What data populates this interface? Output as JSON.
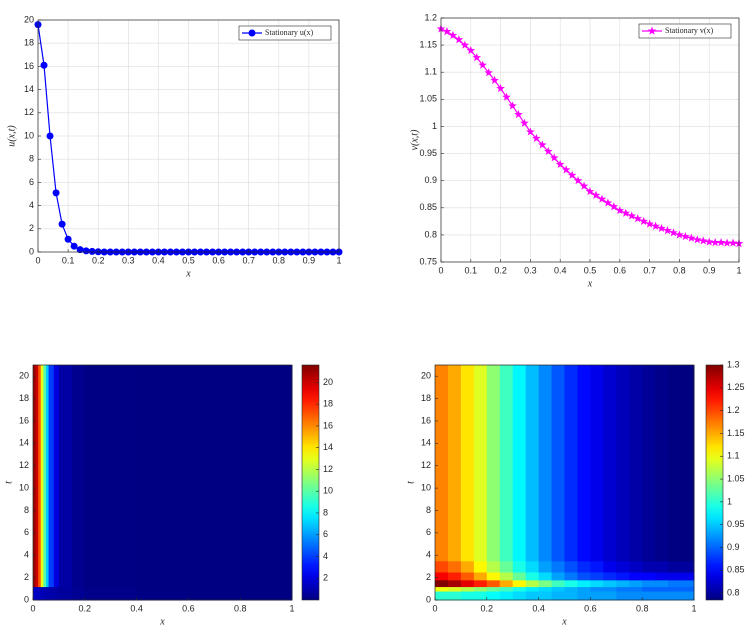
{
  "chart_data": [
    {
      "type": "line",
      "xlabel": "x",
      "ylabel": "u(x,t)",
      "x": [
        0,
        0.02,
        0.04,
        0.06,
        0.08,
        0.1,
        0.12,
        0.14,
        0.16,
        0.18,
        0.2,
        0.22,
        0.24,
        0.26,
        0.28,
        0.3,
        0.32,
        0.34,
        0.36,
        0.38,
        0.4,
        0.42,
        0.44,
        0.46,
        0.48,
        0.5,
        0.52,
        0.54,
        0.56,
        0.58,
        0.6,
        0.62,
        0.64,
        0.66,
        0.68,
        0.7,
        0.72,
        0.74,
        0.76,
        0.78,
        0.8,
        0.82,
        0.84,
        0.86,
        0.88,
        0.9,
        0.92,
        0.94,
        0.96,
        0.98,
        1
      ],
      "series": [
        {
          "name": "Stationary u(x)",
          "color": "#0000ff",
          "marker": "o",
          "values": [
            19.6,
            16.1,
            10,
            5.1,
            2.4,
            1.1,
            0.5,
            0.2,
            0.1,
            0.05,
            0.02,
            0,
            0,
            0,
            0,
            0,
            0,
            0,
            0,
            0,
            0,
            0,
            0,
            0,
            0,
            0,
            0,
            0,
            0,
            0,
            0,
            0,
            0,
            0,
            0,
            0,
            0,
            0,
            0,
            0,
            0,
            0,
            0,
            0,
            0,
            0,
            0,
            0,
            0,
            0,
            0
          ]
        }
      ],
      "xlim": [
        0,
        1
      ],
      "xticks": [
        0,
        0.1,
        0.2,
        0.3,
        0.4,
        0.5,
        0.6,
        0.7,
        0.8,
        0.9,
        1
      ],
      "ylim": [
        0,
        20
      ],
      "yticks": [
        0,
        2,
        4,
        6,
        8,
        10,
        12,
        14,
        16,
        18,
        20
      ],
      "grid": true,
      "legend": "northeast"
    },
    {
      "type": "line",
      "xlabel": "x",
      "ylabel": "v(x,t)",
      "x": [
        0,
        0.02,
        0.04,
        0.06,
        0.08,
        0.1,
        0.12,
        0.14,
        0.16,
        0.18,
        0.2,
        0.22,
        0.24,
        0.26,
        0.28,
        0.3,
        0.32,
        0.34,
        0.36,
        0.38,
        0.4,
        0.42,
        0.44,
        0.46,
        0.48,
        0.5,
        0.52,
        0.54,
        0.56,
        0.58,
        0.6,
        0.62,
        0.64,
        0.66,
        0.68,
        0.7,
        0.72,
        0.74,
        0.76,
        0.78,
        0.8,
        0.82,
        0.84,
        0.86,
        0.88,
        0.9,
        0.92,
        0.94,
        0.96,
        0.98,
        1
      ],
      "series": [
        {
          "name": "Stationary v(x)",
          "color": "#ff00ff",
          "marker": "*",
          "values": [
            1.18,
            1.175,
            1.168,
            1.16,
            1.15,
            1.14,
            1.127,
            1.113,
            1.099,
            1.085,
            1.07,
            1.054,
            1.038,
            1.022,
            1.006,
            0.99,
            0.978,
            0.966,
            0.954,
            0.942,
            0.93,
            0.92,
            0.91,
            0.9,
            0.89,
            0.88,
            0.873,
            0.866,
            0.859,
            0.852,
            0.845,
            0.84,
            0.835,
            0.83,
            0.825,
            0.82,
            0.816,
            0.812,
            0.808,
            0.804,
            0.8,
            0.797,
            0.794,
            0.791,
            0.789,
            0.787,
            0.786,
            0.786,
            0.785,
            0.785,
            0.784
          ]
        }
      ],
      "xlim": [
        0,
        1
      ],
      "xticks": [
        0,
        0.1,
        0.2,
        0.3,
        0.4,
        0.5,
        0.6,
        0.7,
        0.8,
        0.9,
        1
      ],
      "ylim": [
        0.75,
        1.2
      ],
      "yticks": [
        0.75,
        0.8,
        0.85,
        0.9,
        0.95,
        1,
        1.05,
        1.1,
        1.15,
        1.2
      ],
      "grid": true,
      "legend": "northeast"
    },
    {
      "type": "heatmap",
      "xlabel": "x",
      "ylabel": "t",
      "colormap": "jet",
      "x": [
        0,
        0.01,
        0.02,
        0.03,
        0.04,
        0.05,
        0.06,
        0.08,
        0.1,
        0.15,
        0.2,
        0.4,
        0.6,
        0.8,
        1
      ],
      "y": [
        0,
        1.2,
        21
      ],
      "z": [
        [
          1.5,
          1.4,
          1.3,
          1.2,
          1.1,
          1.0,
          0.9,
          0.8,
          0.6,
          0.4,
          0.2,
          0.1,
          0.05,
          0.05
        ],
        [
          21,
          20,
          17,
          13,
          10,
          7,
          4,
          2,
          0.8,
          0.3,
          0.1,
          0.05,
          0.05,
          0.05
        ]
      ],
      "xlim": [
        0,
        1
      ],
      "xticks": [
        0,
        0.2,
        0.4,
        0.6,
        0.8,
        1
      ],
      "ylim": [
        0,
        21
      ],
      "yticks": [
        0,
        2,
        4,
        6,
        8,
        10,
        12,
        14,
        16,
        18,
        20
      ],
      "clim": [
        0,
        21.6
      ],
      "cticks": [
        2,
        4,
        6,
        8,
        10,
        12,
        14,
        16,
        18,
        20
      ],
      "grid": false
    },
    {
      "type": "heatmap",
      "xlabel": "x",
      "ylabel": "t",
      "colormap": "jet",
      "x": [
        0,
        0.05,
        0.1,
        0.15,
        0.2,
        0.25,
        0.3,
        0.35,
        0.4,
        0.45,
        0.5,
        0.55,
        0.6,
        0.65,
        0.7,
        0.75,
        0.8,
        0.85,
        0.9,
        0.95,
        1
      ],
      "y": [
        0,
        0.8,
        1.2,
        1.8,
        2.5,
        3.5,
        21
      ],
      "z": [
        [
          1.0,
          1.0,
          0.99,
          0.99,
          0.98,
          0.97,
          0.96,
          0.95,
          0.95,
          0.94,
          0.94,
          0.93,
          0.93,
          0.93,
          0.92,
          0.92,
          0.92,
          0.92,
          0.92,
          0.92
        ],
        [
          1.1,
          1.09,
          1.07,
          1.05,
          1.03,
          1.01,
          0.99,
          0.97,
          0.96,
          0.95,
          0.94,
          0.93,
          0.92,
          0.92,
          0.91,
          0.91,
          0.9,
          0.9,
          0.9,
          0.9
        ],
        [
          1.3,
          1.28,
          1.25,
          1.22,
          1.19,
          1.15,
          1.11,
          1.07,
          1.04,
          1.01,
          0.99,
          0.97,
          0.96,
          0.95,
          0.94,
          0.93,
          0.92,
          0.92,
          0.91,
          0.91
        ],
        [
          1.24,
          1.22,
          1.19,
          1.15,
          1.11,
          1.07,
          1.03,
          0.99,
          0.96,
          0.93,
          0.91,
          0.89,
          0.88,
          0.87,
          0.86,
          0.85,
          0.85,
          0.84,
          0.84,
          0.84
        ],
        [
          1.2,
          1.18,
          1.15,
          1.11,
          1.07,
          1.03,
          0.99,
          0.96,
          0.93,
          0.91,
          0.89,
          0.87,
          0.86,
          0.84,
          0.83,
          0.82,
          0.81,
          0.81,
          0.8,
          0.8
        ],
        [
          1.17,
          1.15,
          1.12,
          1.09,
          1.05,
          1.01,
          0.975,
          0.945,
          0.918,
          0.893,
          0.871,
          0.853,
          0.839,
          0.826,
          0.815,
          0.805,
          0.797,
          0.791,
          0.787,
          0.785
        ]
      ],
      "xlim": [
        0,
        1
      ],
      "xticks": [
        0,
        0.2,
        0.4,
        0.6,
        0.8,
        1
      ],
      "ylim": [
        0,
        21
      ],
      "yticks": [
        0,
        2,
        4,
        6,
        8,
        10,
        12,
        14,
        16,
        18,
        20
      ],
      "clim": [
        0.785,
        1.3
      ],
      "cticks": [
        0.8,
        0.85,
        0.9,
        0.95,
        1,
        1.05,
        1.1,
        1.15,
        1.2,
        1.25,
        1.3
      ],
      "grid": false
    }
  ]
}
